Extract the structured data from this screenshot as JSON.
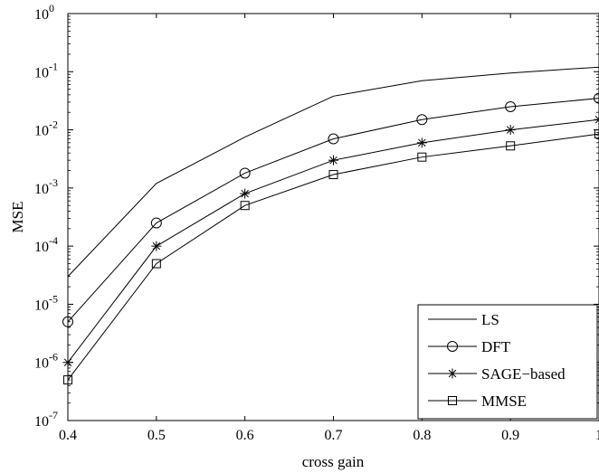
{
  "chart_data": {
    "type": "line",
    "title": "",
    "xlabel": "cross gain",
    "ylabel": "MSE",
    "yscale": "log",
    "xlim": [
      0.4,
      1.0
    ],
    "ylim": [
      1e-07,
      1
    ],
    "grid": false,
    "legend_position": "bottom-right",
    "x": [
      0.4,
      0.5,
      0.6,
      0.7,
      0.8,
      0.9,
      1.0
    ],
    "x_tick_labels": [
      "0.4",
      "0.5",
      "0.6",
      "0.7",
      "0.8",
      "0.9",
      "1"
    ],
    "y_tick_labels": [
      {
        "mant": "10",
        "exp": "0"
      },
      {
        "mant": "10",
        "exp": "-1"
      },
      {
        "mant": "10",
        "exp": "-2"
      },
      {
        "mant": "10",
        "exp": "-3"
      },
      {
        "mant": "10",
        "exp": "-4"
      },
      {
        "mant": "10",
        "exp": "-5"
      },
      {
        "mant": "10",
        "exp": "-6"
      },
      {
        "mant": "10",
        "exp": "-7"
      }
    ],
    "series": [
      {
        "name": "LS",
        "marker": "none",
        "values": [
          3e-05,
          0.0012,
          0.0075,
          0.038,
          0.07,
          0.095,
          0.12
        ]
      },
      {
        "name": "DFT",
        "marker": "circle",
        "values": [
          5e-06,
          0.00025,
          0.0018,
          0.007,
          0.015,
          0.025,
          0.035
        ]
      },
      {
        "name": "SAGE−based",
        "marker": "star",
        "values": [
          1e-06,
          0.0001,
          0.0008,
          0.003,
          0.006,
          0.01,
          0.015
        ]
      },
      {
        "name": "MMSE",
        "marker": "square",
        "values": [
          5e-07,
          5e-05,
          0.0005,
          0.0017,
          0.0034,
          0.0053,
          0.0085
        ]
      }
    ]
  }
}
